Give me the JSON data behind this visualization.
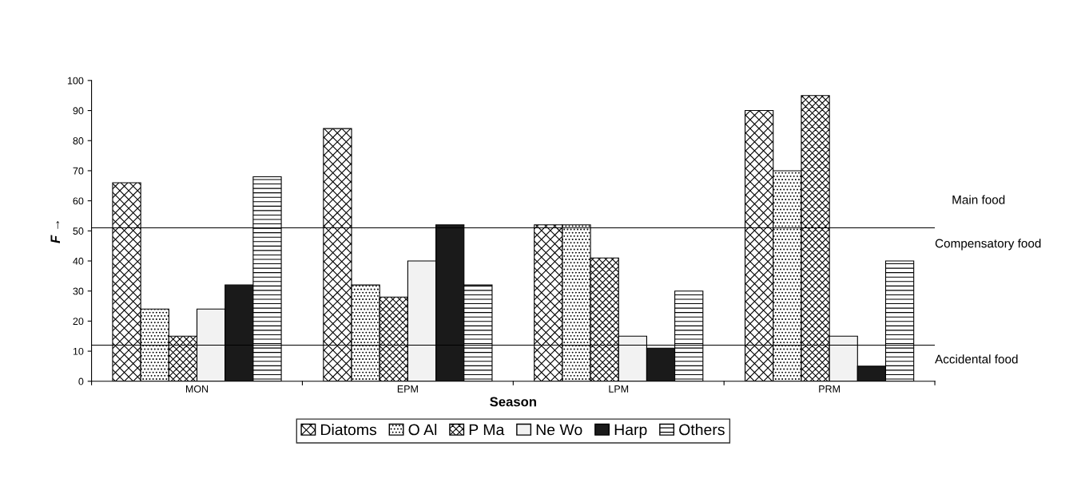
{
  "chart_data": {
    "type": "bar",
    "xlabel": "Season",
    "ylabel": "F →",
    "categories": [
      "MON",
      "EPM",
      "LPM",
      "PRM"
    ],
    "series": [
      {
        "name": "Diatoms",
        "color": "#000000",
        "values": [
          66,
          84,
          52,
          90
        ]
      },
      {
        "name": "O Al",
        "color": "#000000",
        "values": [
          24,
          32,
          52,
          70
        ]
      },
      {
        "name": "P Ma",
        "color": "#000000",
        "values": [
          15,
          28,
          41,
          95
        ]
      },
      {
        "name": "Ne Wo",
        "color": "#f2f2f2",
        "values": [
          24,
          40,
          15,
          15
        ]
      },
      {
        "name": "Harp",
        "color": "#1a1a1a",
        "values": [
          32,
          52,
          11,
          5
        ]
      },
      {
        "name": "Others",
        "color": "#000000",
        "values": [
          68,
          32,
          30,
          40
        ]
      }
    ],
    "ylim": [
      0,
      100
    ],
    "yticks": [
      0,
      10,
      20,
      30,
      40,
      50,
      60,
      70,
      80,
      90,
      100
    ],
    "ref_lines": [
      {
        "axis": "y",
        "value": 51,
        "color": "#000000"
      },
      {
        "axis": "y",
        "value": 12,
        "color": "#000000"
      }
    ],
    "annotations": [
      "Main food",
      "Compensatory food",
      "Accidental food"
    ],
    "grid": false,
    "legend": "bottom"
  }
}
